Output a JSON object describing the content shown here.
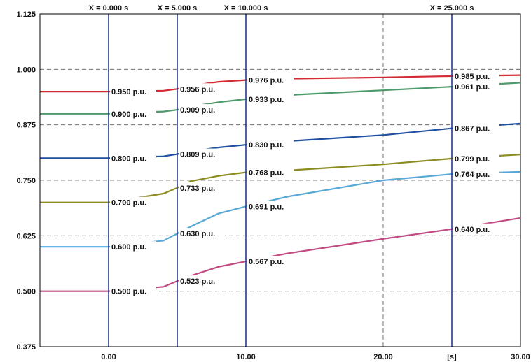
{
  "chart_data": {
    "type": "line",
    "xlim": [
      -5,
      30
    ],
    "ylim": [
      0.375,
      1.125
    ],
    "y_ticks": [
      "0.375",
      "0.500",
      "0.625",
      "0.750",
      "0.875",
      "1.000",
      "1.125"
    ],
    "x_ticks": [
      {
        "value": 0,
        "label": "0.00"
      },
      {
        "value": 10,
        "label": "10.00"
      },
      {
        "value": 20,
        "label": "20.00"
      },
      {
        "value": 25,
        "label": "[s]"
      },
      {
        "value": 30,
        "label": "30.00"
      }
    ],
    "grid": true,
    "cursors": [
      {
        "x": 0,
        "label": "X =  0.000 s"
      },
      {
        "x": 5,
        "label": "X =  5.000 s"
      },
      {
        "x": 10,
        "label": "X = 10.000 s"
      },
      {
        "x": 25,
        "label": "X = 25.000 s"
      }
    ],
    "series": [
      {
        "color": "#d42a33",
        "x": [
          -5,
          0,
          4,
          5,
          6,
          8,
          10,
          13,
          20,
          25,
          30
        ],
        "values": [
          0.95,
          0.95,
          0.952,
          0.956,
          0.963,
          0.972,
          0.976,
          0.979,
          0.982,
          0.985,
          0.987
        ]
      },
      {
        "color": "#4f9a6c",
        "x": [
          -5,
          0,
          4,
          5,
          6,
          8,
          10,
          13,
          20,
          25,
          30
        ],
        "values": [
          0.9,
          0.9,
          0.905,
          0.909,
          0.916,
          0.926,
          0.933,
          0.942,
          0.953,
          0.961,
          0.97
        ]
      },
      {
        "color": "#1f4fa0",
        "x": [
          -5,
          0,
          4,
          5,
          6,
          8,
          10,
          13,
          20,
          25,
          30
        ],
        "values": [
          0.8,
          0.8,
          0.804,
          0.809,
          0.815,
          0.824,
          0.83,
          0.838,
          0.852,
          0.867,
          0.878
        ]
      },
      {
        "color": "#8c8c22",
        "x": [
          -5,
          0,
          4,
          5,
          6,
          8,
          10,
          13,
          20,
          25,
          30
        ],
        "values": [
          0.7,
          0.7,
          0.72,
          0.733,
          0.748,
          0.76,
          0.768,
          0.772,
          0.786,
          0.799,
          0.808
        ]
      },
      {
        "color": "#59a9d6",
        "x": [
          -5,
          0,
          4,
          5,
          6,
          8,
          10,
          13,
          20,
          25,
          30
        ],
        "values": [
          0.6,
          0.6,
          0.614,
          0.63,
          0.646,
          0.675,
          0.691,
          0.713,
          0.75,
          0.764,
          0.769
        ]
      },
      {
        "color": "#c24a82",
        "x": [
          -5,
          0,
          4,
          5,
          6,
          8,
          10,
          13,
          20,
          25,
          30
        ],
        "values": [
          0.5,
          0.5,
          0.51,
          0.523,
          0.535,
          0.555,
          0.567,
          0.585,
          0.618,
          0.64,
          0.665
        ]
      }
    ],
    "data_labels": [
      {
        "x": 0,
        "y": 0.95,
        "text": "0.950 p.u."
      },
      {
        "x": 5,
        "y": 0.956,
        "text": "0.956 p.u."
      },
      {
        "x": 10,
        "y": 0.976,
        "text": "0.976 p.u."
      },
      {
        "x": 25,
        "y": 0.985,
        "text": "0.985 p.u."
      },
      {
        "x": 0,
        "y": 0.9,
        "text": "0.900 p.u."
      },
      {
        "x": 5,
        "y": 0.909,
        "text": "0.909 p.u."
      },
      {
        "x": 10,
        "y": 0.933,
        "text": "0.933 p.u."
      },
      {
        "x": 25,
        "y": 0.961,
        "text": "0.961 p.u."
      },
      {
        "x": 0,
        "y": 0.8,
        "text": "0.800 p.u."
      },
      {
        "x": 5,
        "y": 0.809,
        "text": "0.809 p.u."
      },
      {
        "x": 10,
        "y": 0.83,
        "text": "0.830 p.u."
      },
      {
        "x": 25,
        "y": 0.867,
        "text": "0.867 p.u."
      },
      {
        "x": 0,
        "y": 0.7,
        "text": "0.700 p.u."
      },
      {
        "x": 5,
        "y": 0.733,
        "text": "0.733 p.u."
      },
      {
        "x": 10,
        "y": 0.768,
        "text": "0.768 p.u."
      },
      {
        "x": 25,
        "y": 0.799,
        "text": "0.799 p.u."
      },
      {
        "x": 0,
        "y": 0.6,
        "text": "0.600 p.u."
      },
      {
        "x": 5,
        "y": 0.63,
        "text": "0.630 p.u."
      },
      {
        "x": 10,
        "y": 0.691,
        "text": "0.691 p.u."
      },
      {
        "x": 25,
        "y": 0.764,
        "text": "0.764 p.u."
      },
      {
        "x": 0,
        "y": 0.5,
        "text": "0.500 p.u."
      },
      {
        "x": 5,
        "y": 0.523,
        "text": "0.523 p.u."
      },
      {
        "x": 10,
        "y": 0.567,
        "text": "0.567 p.u."
      },
      {
        "x": 25,
        "y": 0.64,
        "text": "0.640 p.u."
      }
    ]
  }
}
